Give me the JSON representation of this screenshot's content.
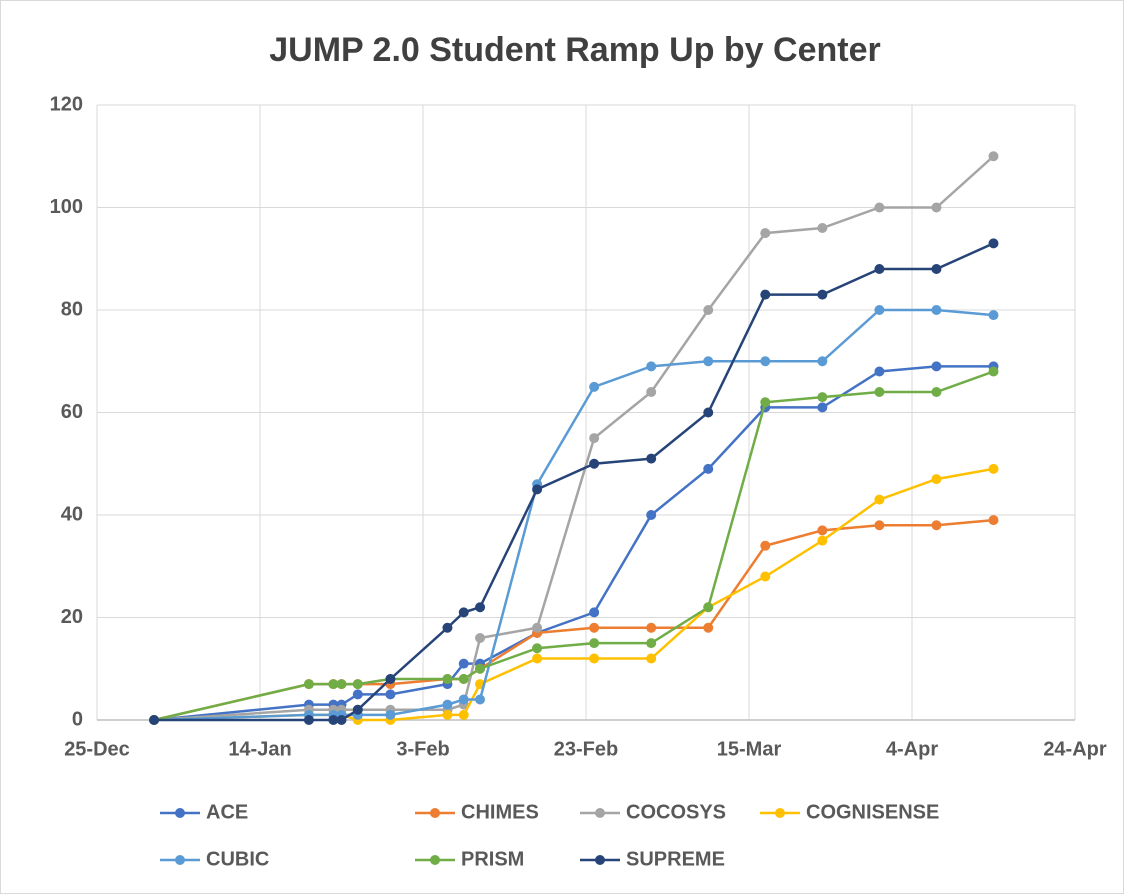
{
  "chart_data": {
    "type": "line",
    "title": "JUMP 2.0 Student Ramp Up by Center",
    "x": [
      "01-01",
      "01-20",
      "01-23",
      "01-24",
      "01-26",
      "01-30",
      "02-06",
      "02-08",
      "02-10",
      "02-17",
      "02-24",
      "03-03",
      "03-10",
      "03-17",
      "03-24",
      "03-31",
      "04-07",
      "04-14"
    ],
    "xlim": [
      "12-25",
      "04-24"
    ],
    "xticks": [
      {
        "value": "12-25",
        "label": "25-Dec"
      },
      {
        "value": "01-14",
        "label": "14-Jan"
      },
      {
        "value": "02-03",
        "label": "3-Feb"
      },
      {
        "value": "02-23",
        "label": "23-Feb"
      },
      {
        "value": "03-15",
        "label": "15-Mar"
      },
      {
        "value": "04-04",
        "label": "4-Apr"
      },
      {
        "value": "04-24",
        "label": "24-Apr"
      }
    ],
    "ylim": [
      0,
      120
    ],
    "yticks": [
      0,
      20,
      40,
      60,
      80,
      100,
      120
    ],
    "grid": true,
    "series": [
      {
        "name": "ACE",
        "color": "#4472c4",
        "values": [
          0,
          3,
          3,
          3,
          5,
          5,
          7,
          11,
          11,
          17,
          21,
          40,
          49,
          61,
          61,
          68,
          69,
          69
        ]
      },
      {
        "name": "CHIMES",
        "color": "#ed7d31",
        "values": [
          0,
          7,
          7,
          7,
          7,
          7,
          8,
          8,
          10,
          17,
          18,
          18,
          18,
          34,
          37,
          38,
          38,
          39
        ]
      },
      {
        "name": "COCOSYS",
        "color": "#a5a5a5",
        "values": [
          0,
          2,
          2,
          2,
          2,
          2,
          2,
          3,
          16,
          18,
          55,
          64,
          80,
          95,
          96,
          100,
          100,
          110
        ]
      },
      {
        "name": "COGNISENSE",
        "color": "#ffc000",
        "values": [
          0,
          1,
          1,
          1,
          0,
          0,
          1,
          1,
          7,
          12,
          12,
          12,
          22,
          28,
          35,
          43,
          47,
          49
        ]
      },
      {
        "name": "CUBIC",
        "color": "#5b9bd5",
        "values": [
          0,
          1,
          1,
          1,
          1,
          1,
          3,
          4,
          4,
          46,
          65,
          69,
          70,
          70,
          70,
          80,
          80,
          79
        ]
      },
      {
        "name": "PRISM",
        "color": "#70ad47",
        "values": [
          0,
          7,
          7,
          7,
          7,
          8,
          8,
          8,
          10,
          14,
          15,
          15,
          22,
          62,
          63,
          64,
          64,
          68
        ]
      },
      {
        "name": "SUPREME",
        "color": "#264478",
        "values": [
          0,
          0,
          0,
          0,
          2,
          8,
          18,
          21,
          22,
          45,
          50,
          51,
          60,
          83,
          83,
          88,
          88,
          93
        ]
      }
    ]
  }
}
